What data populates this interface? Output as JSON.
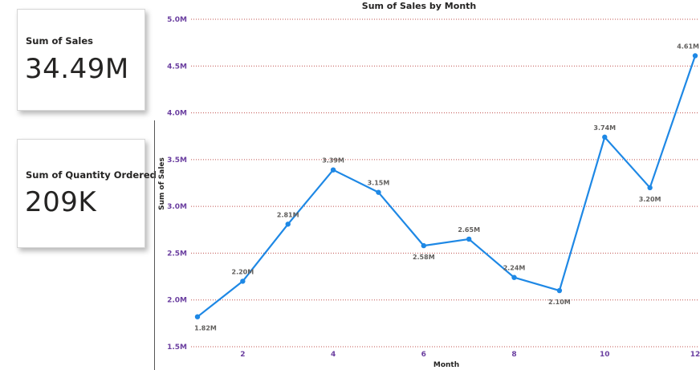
{
  "cards": {
    "sales": {
      "title": "Sum of Sales",
      "value": "34.49M"
    },
    "quantity": {
      "title": "Sum of Quantity Ordered",
      "value": "209K"
    }
  },
  "colors": {
    "line": "#1e88e5",
    "grid": "#c0504d"
  },
  "chart_data": {
    "type": "line",
    "title": "Sum of Sales by Month",
    "xlabel": "Month",
    "ylabel": "Sum of Sales",
    "x": [
      1,
      2,
      3,
      4,
      5,
      6,
      7,
      8,
      9,
      10,
      11,
      12
    ],
    "values": [
      1.82,
      2.2,
      2.81,
      3.39,
      3.15,
      2.58,
      2.65,
      2.24,
      2.1,
      3.74,
      3.2,
      4.61
    ],
    "data_labels": [
      "1.82M",
      "2.20M",
      "2.81M",
      "3.39M",
      "3.15M",
      "2.58M",
      "2.65M",
      "2.24M",
      "2.10M",
      "3.74M",
      "3.20M",
      "4.61M"
    ],
    "label_position": [
      "below",
      "above",
      "above",
      "above",
      "above",
      "below",
      "above",
      "above",
      "below",
      "above",
      "below",
      "above"
    ],
    "x_ticks": [
      2,
      4,
      6,
      8,
      10,
      12
    ],
    "x_tick_labels": [
      "2",
      "4",
      "6",
      "8",
      "10",
      "12"
    ],
    "y_ticks": [
      1.5,
      2.0,
      2.5,
      3.0,
      3.5,
      4.0,
      4.5,
      5.0
    ],
    "y_tick_labels": [
      "1.5M",
      "2.0M",
      "2.5M",
      "3.0M",
      "3.5M",
      "4.0M",
      "4.5M",
      "5.0M"
    ],
    "xlim": [
      1,
      12
    ],
    "ylim": [
      1.5,
      5.0
    ],
    "grid": true,
    "gridlines": "horizontal-dotted"
  }
}
